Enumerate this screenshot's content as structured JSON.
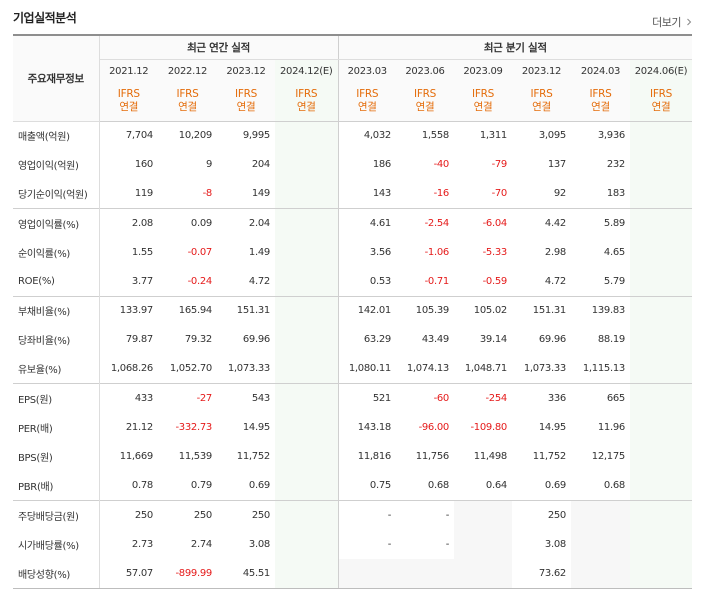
{
  "header": {
    "title": "기업실적분석",
    "more_label": "더보기",
    "more_icon": "chevron-right-icon"
  },
  "table": {
    "row_header_label": "주요재무정보",
    "group_annual": "최근 연간 실적",
    "group_quarterly": "최근 분기 실적",
    "accounting_label_line1": "IFRS",
    "accounting_label_line2": "연결",
    "columns": [
      "2021.12",
      "2022.12",
      "2023.12",
      "2024.12(E)",
      "2023.03",
      "2023.06",
      "2023.09",
      "2023.12",
      "2024.03",
      "2024.06(E)"
    ],
    "estimate_column_indexes": [
      3,
      9
    ],
    "rows": [
      {
        "label": "매출액(억원)",
        "values": [
          "7,704",
          "10,209",
          "9,995",
          "",
          "4,032",
          "1,558",
          "1,311",
          "3,095",
          "3,936",
          ""
        ]
      },
      {
        "label": "영업이익(억원)",
        "values": [
          "160",
          "9",
          "204",
          "",
          "186",
          "-40",
          "-79",
          "137",
          "232",
          ""
        ]
      },
      {
        "label": "당기순이익(억원)",
        "values": [
          "119",
          "-8",
          "149",
          "",
          "143",
          "-16",
          "-70",
          "92",
          "183",
          ""
        ]
      },
      {
        "label": "영업이익률(%)",
        "values": [
          "2.08",
          "0.09",
          "2.04",
          "",
          "4.61",
          "-2.54",
          "-6.04",
          "4.42",
          "5.89",
          ""
        ]
      },
      {
        "label": "순이익률(%)",
        "values": [
          "1.55",
          "-0.07",
          "1.49",
          "",
          "3.56",
          "-1.06",
          "-5.33",
          "2.98",
          "4.65",
          ""
        ]
      },
      {
        "label": "ROE(%)",
        "values": [
          "3.77",
          "-0.24",
          "4.72",
          "",
          "0.53",
          "-0.71",
          "-0.59",
          "4.72",
          "5.79",
          ""
        ]
      },
      {
        "label": "부채비율(%)",
        "values": [
          "133.97",
          "165.94",
          "151.31",
          "",
          "142.01",
          "105.39",
          "105.02",
          "151.31",
          "139.83",
          ""
        ]
      },
      {
        "label": "당좌비율(%)",
        "values": [
          "79.87",
          "79.32",
          "69.96",
          "",
          "63.29",
          "43.49",
          "39.14",
          "69.96",
          "88.19",
          ""
        ]
      },
      {
        "label": "유보율(%)",
        "values": [
          "1,068.26",
          "1,052.70",
          "1,073.33",
          "",
          "1,080.11",
          "1,074.13",
          "1,048.71",
          "1,073.33",
          "1,115.13",
          ""
        ]
      },
      {
        "label": "EPS(원)",
        "values": [
          "433",
          "-27",
          "543",
          "",
          "521",
          "-60",
          "-254",
          "336",
          "665",
          ""
        ]
      },
      {
        "label": "PER(배)",
        "values": [
          "21.12",
          "-332.73",
          "14.95",
          "",
          "143.18",
          "-96.00",
          "-109.80",
          "14.95",
          "11.96",
          ""
        ]
      },
      {
        "label": "BPS(원)",
        "values": [
          "11,669",
          "11,539",
          "11,752",
          "",
          "11,816",
          "11,756",
          "11,498",
          "11,752",
          "12,175",
          ""
        ]
      },
      {
        "label": "PBR(배)",
        "values": [
          "0.78",
          "0.79",
          "0.69",
          "",
          "0.75",
          "0.68",
          "0.64",
          "0.69",
          "0.68",
          ""
        ]
      },
      {
        "label": "주당배당금(원)",
        "values": [
          "250",
          "250",
          "250",
          "",
          "-",
          "-",
          "",
          "250",
          "",
          ""
        ]
      },
      {
        "label": "시가배당률(%)",
        "values": [
          "2.73",
          "2.74",
          "3.08",
          "",
          "-",
          "-",
          "",
          "3.08",
          "",
          ""
        ]
      },
      {
        "label": "배당성향(%)",
        "values": [
          "57.07",
          "-899.99",
          "45.51",
          "",
          "",
          "",
          "",
          "73.62",
          "",
          ""
        ]
      }
    ]
  },
  "colors": {
    "negative": "#e51b1b",
    "accounting_label": "#e46c0a",
    "estimate_bg": "#f5faf5",
    "header_bg": "#fafafa"
  }
}
